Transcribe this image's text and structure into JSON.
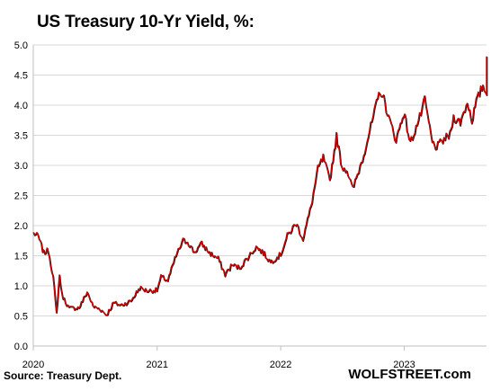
{
  "header": {
    "title": "US Treasury  10-Yr Yield, %:"
  },
  "footer": {
    "source": "Source: Treasury Dept.",
    "brand": "WOLFSTREET.com"
  },
  "colors": {
    "line": "#cc0000",
    "line_shadow": "#1a1a1a",
    "grid": "#d9d9d9",
    "axis": "#bfbfbf"
  },
  "chart_data": {
    "type": "line",
    "title": "US Treasury  10-Yr Yield, %:",
    "xlabel": "",
    "ylabel": "",
    "ylim": [
      0,
      5
    ],
    "xlim": [
      "2020-01-01",
      "2023-09-01"
    ],
    "y_ticks": [
      "0.0",
      "0.5",
      "1.0",
      "1.5",
      "2.0",
      "2.5",
      "3.0",
      "3.5",
      "4.0",
      "4.5",
      "5.0"
    ],
    "x_ticks": [
      {
        "label": "2020",
        "date": "2020-01-01"
      },
      {
        "label": "2021",
        "date": "2021-01-01"
      },
      {
        "label": "2022",
        "date": "2022-01-01"
      },
      {
        "label": "2023",
        "date": "2023-01-01"
      }
    ],
    "grid": true,
    "legend": "none",
    "series": [
      {
        "name": "",
        "points": [
          [
            "2020-01-01",
            1.88
          ],
          [
            "2020-01-15",
            1.82
          ],
          [
            "2020-01-31",
            1.55
          ],
          [
            "2020-02-14",
            1.59
          ],
          [
            "2020-02-28",
            1.15
          ],
          [
            "2020-03-09",
            0.54
          ],
          [
            "2020-03-18",
            1.18
          ],
          [
            "2020-03-25",
            0.85
          ],
          [
            "2020-04-15",
            0.63
          ],
          [
            "2020-05-15",
            0.64
          ],
          [
            "2020-06-08",
            0.9
          ],
          [
            "2020-06-25",
            0.66
          ],
          [
            "2020-07-15",
            0.62
          ],
          [
            "2020-08-04",
            0.52
          ],
          [
            "2020-08-25",
            0.72
          ],
          [
            "2020-09-15",
            0.68
          ],
          [
            "2020-10-15",
            0.75
          ],
          [
            "2020-11-10",
            0.97
          ],
          [
            "2020-12-01",
            0.92
          ],
          [
            "2020-12-31",
            0.93
          ],
          [
            "2021-01-12",
            1.15
          ],
          [
            "2021-02-01",
            1.09
          ],
          [
            "2021-02-25",
            1.5
          ],
          [
            "2021-03-18",
            1.75
          ],
          [
            "2021-03-31",
            1.74
          ],
          [
            "2021-04-20",
            1.56
          ],
          [
            "2021-05-12",
            1.7
          ],
          [
            "2021-06-04",
            1.55
          ],
          [
            "2021-06-30",
            1.45
          ],
          [
            "2021-07-20",
            1.19
          ],
          [
            "2021-08-10",
            1.35
          ],
          [
            "2021-09-01",
            1.3
          ],
          [
            "2021-10-20",
            1.65
          ],
          [
            "2021-11-10",
            1.55
          ],
          [
            "2021-12-01",
            1.4
          ],
          [
            "2021-12-31",
            1.52
          ],
          [
            "2022-01-20",
            1.83
          ],
          [
            "2022-02-15",
            2.04
          ],
          [
            "2022-03-07",
            1.78
          ],
          [
            "2022-03-31",
            2.32
          ],
          [
            "2022-04-20",
            2.94
          ],
          [
            "2022-05-06",
            3.13
          ],
          [
            "2022-05-25",
            2.75
          ],
          [
            "2022-06-14",
            3.48
          ],
          [
            "2022-06-30",
            2.98
          ],
          [
            "2022-07-15",
            2.93
          ],
          [
            "2022-08-01",
            2.6
          ],
          [
            "2022-08-30",
            3.11
          ],
          [
            "2022-09-20",
            3.57
          ],
          [
            "2022-10-21",
            4.25
          ],
          [
            "2022-11-01",
            4.1
          ],
          [
            "2022-11-15",
            3.8
          ],
          [
            "2022-12-07",
            3.42
          ],
          [
            "2022-12-30",
            3.88
          ],
          [
            "2023-01-18",
            3.37
          ],
          [
            "2023-02-15",
            3.8
          ],
          [
            "2023-03-02",
            4.08
          ],
          [
            "2023-03-24",
            3.38
          ],
          [
            "2023-04-06",
            3.3
          ],
          [
            "2023-04-28",
            3.44
          ],
          [
            "2023-05-15",
            3.5
          ],
          [
            "2023-05-26",
            3.8
          ],
          [
            "2023-06-15",
            3.72
          ],
          [
            "2023-07-06",
            4.05
          ],
          [
            "2023-07-19",
            3.75
          ],
          [
            "2023-08-01",
            4.05
          ],
          [
            "2023-08-21",
            4.34
          ],
          [
            "2023-08-28",
            4.2
          ],
          [
            "2023-09-05",
            4.27
          ],
          [
            "2023-09-20",
            4.35
          ],
          [
            "2023-10-03",
            4.81
          ]
        ]
      }
    ]
  }
}
